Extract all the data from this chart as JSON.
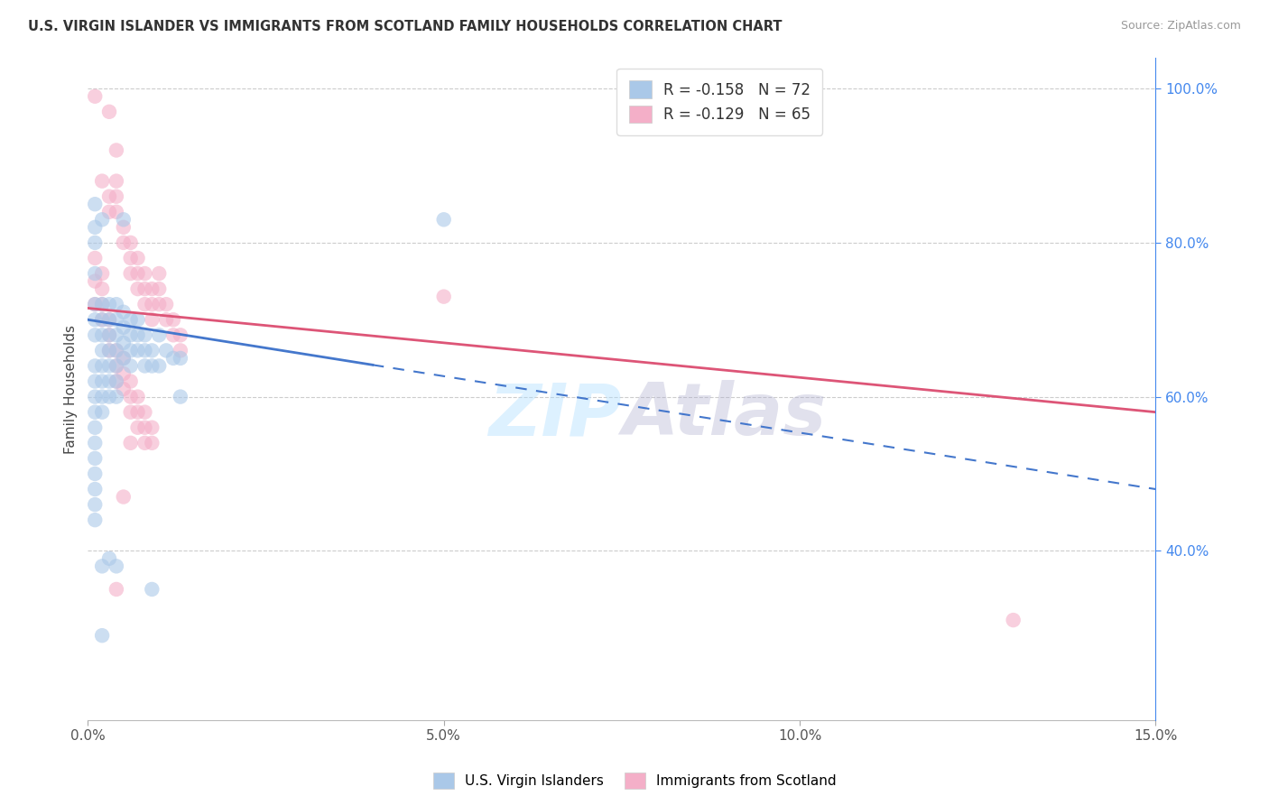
{
  "title": "U.S. VIRGIN ISLANDER VS IMMIGRANTS FROM SCOTLAND FAMILY HOUSEHOLDS CORRELATION CHART",
  "source": "Source: ZipAtlas.com",
  "ylabel": "Family Households",
  "xmin": 0.0,
  "xmax": 0.15,
  "ymin": 0.18,
  "ymax": 1.04,
  "ytick_vals": [
    0.4,
    0.6,
    0.8,
    1.0
  ],
  "ytick_labels": [
    "40.0%",
    "60.0%",
    "80.0%",
    "100.0%"
  ],
  "xtick_vals": [
    0.0,
    0.05,
    0.1,
    0.15
  ],
  "xtick_labels": [
    "0.0%",
    "5.0%",
    "10.0%",
    "15.0%"
  ],
  "watermark": "ZIPAtlas",
  "blue_color": "#aac8e8",
  "pink_color": "#f4afc8",
  "blue_line_color": "#4477cc",
  "pink_line_color": "#dd5577",
  "right_axis_color": "#4488ee",
  "blue_line": {
    "x0": 0.0,
    "y0": 0.7,
    "x1": 0.15,
    "y1": 0.48
  },
  "pink_line": {
    "x0": 0.0,
    "y0": 0.715,
    "x1": 0.15,
    "y1": 0.58
  },
  "blue_line_solid_end": 0.04,
  "blue_scatter": [
    [
      0.001,
      0.7
    ],
    [
      0.001,
      0.72
    ],
    [
      0.001,
      0.68
    ],
    [
      0.001,
      0.76
    ],
    [
      0.001,
      0.8
    ],
    [
      0.001,
      0.82
    ],
    [
      0.001,
      0.64
    ],
    [
      0.001,
      0.62
    ],
    [
      0.001,
      0.6
    ],
    [
      0.001,
      0.58
    ],
    [
      0.001,
      0.56
    ],
    [
      0.001,
      0.54
    ],
    [
      0.001,
      0.52
    ],
    [
      0.001,
      0.5
    ],
    [
      0.001,
      0.48
    ],
    [
      0.001,
      0.46
    ],
    [
      0.001,
      0.44
    ],
    [
      0.001,
      0.85
    ],
    [
      0.002,
      0.7
    ],
    [
      0.002,
      0.72
    ],
    [
      0.002,
      0.68
    ],
    [
      0.002,
      0.66
    ],
    [
      0.002,
      0.64
    ],
    [
      0.002,
      0.62
    ],
    [
      0.002,
      0.6
    ],
    [
      0.002,
      0.58
    ],
    [
      0.002,
      0.83
    ],
    [
      0.002,
      0.38
    ],
    [
      0.003,
      0.72
    ],
    [
      0.003,
      0.7
    ],
    [
      0.003,
      0.68
    ],
    [
      0.003,
      0.66
    ],
    [
      0.003,
      0.64
    ],
    [
      0.003,
      0.62
    ],
    [
      0.003,
      0.6
    ],
    [
      0.003,
      0.39
    ],
    [
      0.004,
      0.72
    ],
    [
      0.004,
      0.7
    ],
    [
      0.004,
      0.68
    ],
    [
      0.004,
      0.66
    ],
    [
      0.004,
      0.64
    ],
    [
      0.004,
      0.62
    ],
    [
      0.004,
      0.6
    ],
    [
      0.004,
      0.38
    ],
    [
      0.005,
      0.71
    ],
    [
      0.005,
      0.69
    ],
    [
      0.005,
      0.67
    ],
    [
      0.005,
      0.65
    ],
    [
      0.005,
      0.83
    ],
    [
      0.006,
      0.7
    ],
    [
      0.006,
      0.68
    ],
    [
      0.006,
      0.66
    ],
    [
      0.006,
      0.64
    ],
    [
      0.007,
      0.7
    ],
    [
      0.007,
      0.68
    ],
    [
      0.007,
      0.66
    ],
    [
      0.008,
      0.68
    ],
    [
      0.008,
      0.66
    ],
    [
      0.008,
      0.64
    ],
    [
      0.009,
      0.66
    ],
    [
      0.009,
      0.64
    ],
    [
      0.01,
      0.68
    ],
    [
      0.01,
      0.64
    ],
    [
      0.011,
      0.66
    ],
    [
      0.012,
      0.65
    ],
    [
      0.013,
      0.65
    ],
    [
      0.013,
      0.6
    ],
    [
      0.05,
      0.83
    ],
    [
      0.002,
      0.29
    ],
    [
      0.009,
      0.35
    ]
  ],
  "pink_scatter": [
    [
      0.003,
      0.97
    ],
    [
      0.004,
      0.92
    ],
    [
      0.002,
      0.88
    ],
    [
      0.003,
      0.86
    ],
    [
      0.003,
      0.84
    ],
    [
      0.004,
      0.88
    ],
    [
      0.004,
      0.86
    ],
    [
      0.004,
      0.84
    ],
    [
      0.005,
      0.82
    ],
    [
      0.005,
      0.8
    ],
    [
      0.006,
      0.8
    ],
    [
      0.006,
      0.78
    ],
    [
      0.006,
      0.76
    ],
    [
      0.007,
      0.78
    ],
    [
      0.007,
      0.76
    ],
    [
      0.007,
      0.74
    ],
    [
      0.008,
      0.76
    ],
    [
      0.008,
      0.74
    ],
    [
      0.008,
      0.72
    ],
    [
      0.009,
      0.74
    ],
    [
      0.009,
      0.72
    ],
    [
      0.009,
      0.7
    ],
    [
      0.01,
      0.76
    ],
    [
      0.01,
      0.74
    ],
    [
      0.01,
      0.72
    ],
    [
      0.011,
      0.72
    ],
    [
      0.011,
      0.7
    ],
    [
      0.012,
      0.7
    ],
    [
      0.012,
      0.68
    ],
    [
      0.013,
      0.68
    ],
    [
      0.013,
      0.66
    ],
    [
      0.001,
      0.78
    ],
    [
      0.001,
      0.75
    ],
    [
      0.001,
      0.72
    ],
    [
      0.002,
      0.76
    ],
    [
      0.002,
      0.74
    ],
    [
      0.002,
      0.72
    ],
    [
      0.002,
      0.7
    ],
    [
      0.003,
      0.7
    ],
    [
      0.003,
      0.68
    ],
    [
      0.003,
      0.66
    ],
    [
      0.004,
      0.66
    ],
    [
      0.004,
      0.64
    ],
    [
      0.004,
      0.62
    ],
    [
      0.005,
      0.65
    ],
    [
      0.005,
      0.63
    ],
    [
      0.005,
      0.61
    ],
    [
      0.005,
      0.47
    ],
    [
      0.006,
      0.62
    ],
    [
      0.006,
      0.6
    ],
    [
      0.006,
      0.58
    ],
    [
      0.006,
      0.54
    ],
    [
      0.007,
      0.6
    ],
    [
      0.007,
      0.58
    ],
    [
      0.007,
      0.56
    ],
    [
      0.008,
      0.58
    ],
    [
      0.008,
      0.56
    ],
    [
      0.008,
      0.54
    ],
    [
      0.009,
      0.56
    ],
    [
      0.009,
      0.54
    ],
    [
      0.004,
      0.35
    ],
    [
      0.05,
      0.73
    ],
    [
      0.13,
      0.31
    ],
    [
      0.001,
      0.99
    ]
  ],
  "legend_r1": "-0.158",
  "legend_n1": "72",
  "legend_r2": "-0.129",
  "legend_n2": "65",
  "legend_text_color": "#333333",
  "legend_val_color": "#3355dd"
}
